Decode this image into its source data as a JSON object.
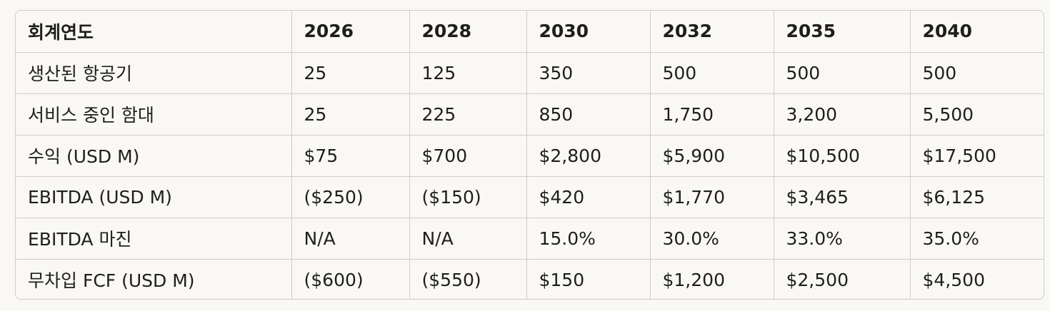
{
  "table": {
    "headers": [
      "회계연도",
      "2026",
      "2028",
      "2030",
      "2032",
      "2035",
      "2040"
    ],
    "rows": [
      [
        "생산된 항공기",
        "25",
        "125",
        "350",
        "500",
        "500",
        "500"
      ],
      [
        "서비스 중인 함대",
        "25",
        "225",
        "850",
        "1,750",
        "3,200",
        "5,500"
      ],
      [
        "수익 (USD M)",
        "$75",
        "$700",
        "$2,800",
        "$5,900",
        "$10,500",
        "$17,500"
      ],
      [
        "EBITDA (USD M)",
        "($250)",
        "($150)",
        "$420",
        "$1,770",
        "$3,465",
        "$6,125"
      ],
      [
        "EBITDA 마진",
        "N/A",
        "N/A",
        "15.0%",
        "30.0%",
        "33.0%",
        "35.0%"
      ],
      [
        "무차입 FCF (USD M)",
        "($600)",
        "($550)",
        "$150",
        "$1,200",
        "$2,500",
        "$4,500"
      ]
    ]
  }
}
